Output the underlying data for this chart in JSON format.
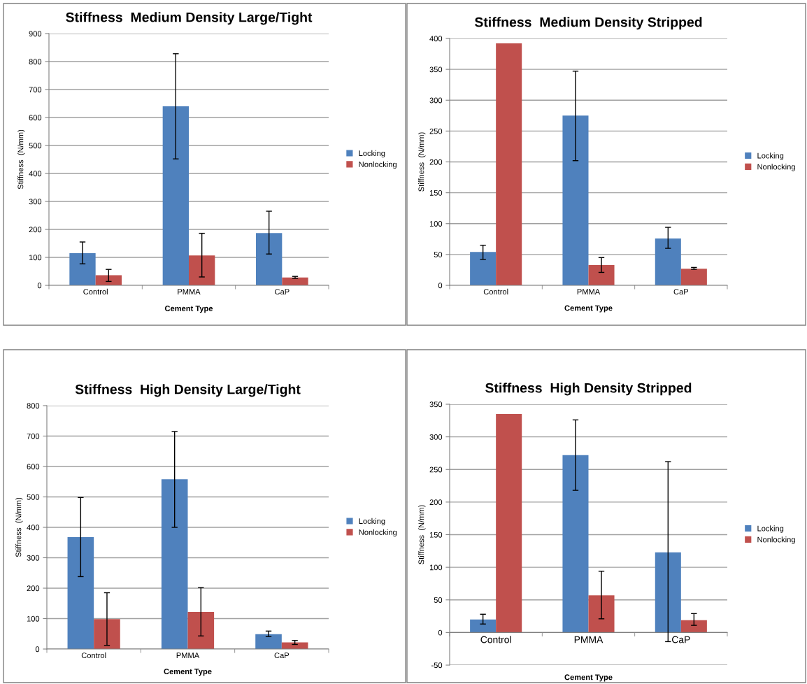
{
  "chart_data": [
    {
      "type": "bar",
      "title": "Stiffness  Medium Density Large/Tight",
      "xlabel": "Cement Type",
      "ylabel": "Stiffness  (N/mm)",
      "categories": [
        "Control",
        "PMMA",
        "CaP"
      ],
      "ylim": [
        0,
        900
      ],
      "yticks": [
        0,
        100,
        200,
        300,
        400,
        500,
        600,
        700,
        800,
        900
      ],
      "grid": "y",
      "legend": "right",
      "series": [
        {
          "name": "Locking",
          "color": "#4f81bd",
          "values": [
            115,
            640,
            187
          ],
          "errors": [
            [
              77,
              155
            ],
            [
              452,
              828
            ],
            [
              112,
              265
            ]
          ]
        },
        {
          "name": "Nonlocking",
          "color": "#c0504d",
          "values": [
            36,
            107,
            28
          ],
          "errors": [
            [
              14,
              57
            ],
            [
              30,
              186
            ],
            [
              25,
              32
            ]
          ]
        }
      ]
    },
    {
      "type": "bar",
      "title": "Stiffness  Medium Density Stripped",
      "xlabel": "Cement Type",
      "ylabel": "Stiffness  (N/mm)",
      "categories": [
        "Control",
        "PMMA",
        "CaP"
      ],
      "ylim": [
        0,
        400
      ],
      "yticks": [
        0,
        50,
        100,
        150,
        200,
        250,
        300,
        350,
        400
      ],
      "grid": "y",
      "legend": "right",
      "series": [
        {
          "name": "Locking",
          "color": "#4f81bd",
          "values": [
            54,
            275,
            76
          ],
          "errors": [
            [
              42,
              65
            ],
            [
              202,
              347
            ],
            [
              60,
              94
            ]
          ]
        },
        {
          "name": "Nonlocking",
          "color": "#c0504d",
          "values": [
            392,
            33,
            27
          ],
          "errors": [
            null,
            [
              21,
              45
            ],
            [
              26,
              29
            ]
          ]
        }
      ]
    },
    {
      "type": "bar",
      "title": "Stiffness  High Density Large/Tight",
      "xlabel": "Cement Type",
      "ylabel": "Stiffness  (N/mm)",
      "categories": [
        "Control",
        "PMMA",
        "CaP"
      ],
      "ylim": [
        0,
        800
      ],
      "yticks": [
        0,
        100,
        200,
        300,
        400,
        500,
        600,
        700,
        800
      ],
      "grid": "y",
      "legend": "right",
      "series": [
        {
          "name": "Locking",
          "color": "#4f81bd",
          "values": [
            368,
            558,
            49
          ],
          "errors": [
            [
              238,
              498
            ],
            [
              400,
              715
            ],
            [
              41,
              59
            ]
          ]
        },
        {
          "name": "Nonlocking",
          "color": "#c0504d",
          "values": [
            98,
            122,
            22
          ],
          "errors": [
            [
              12,
              185
            ],
            [
              43,
              202
            ],
            [
              15,
              28
            ]
          ]
        }
      ]
    },
    {
      "type": "bar",
      "title": "Stiffness  High Density Stripped",
      "xlabel": "Cement Type",
      "ylabel": "Stiffness  (N/mm)",
      "categories": [
        "Control",
        "PMMA",
        "CaP"
      ],
      "ylim": [
        -50,
        350
      ],
      "yticks": [
        -50,
        0,
        50,
        100,
        150,
        200,
        250,
        300,
        350
      ],
      "grid": "y",
      "legend": "right",
      "series": [
        {
          "name": "Locking",
          "color": "#4f81bd",
          "values": [
            20,
            272,
            123
          ],
          "errors": [
            [
              13,
              28
            ],
            [
              218,
              326
            ],
            [
              -14,
              262
            ]
          ]
        },
        {
          "name": "Nonlocking",
          "color": "#c0504d",
          "values": [
            335,
            57,
            19
          ],
          "errors": [
            null,
            [
              21,
              94
            ],
            [
              11,
              29
            ]
          ]
        }
      ]
    }
  ]
}
